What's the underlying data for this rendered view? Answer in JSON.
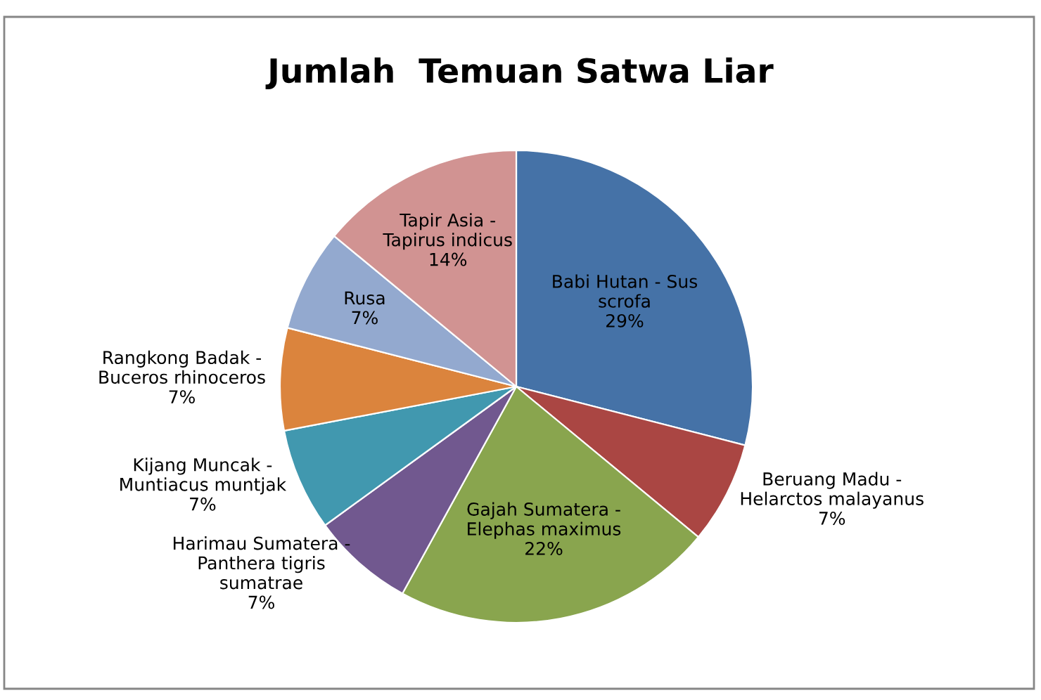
{
  "chart_data": {
    "type": "pie",
    "title": "Jumlah  Temuan Satwa Liar",
    "categories": [
      "Babi Hutan - Sus\nscrofa",
      "Beruang Madu -\nHelarctos malayanus",
      "Gajah Sumatera -\nElephas maximus",
      "Harimau Sumatera -\nPanthera tigris\nsumatrae",
      "Kijang Muncak -\nMuntiacus muntjak",
      "Rangkong Badak -\nBuceros rhinoceros",
      "Rusa",
      "Tapir Asia -\nTapirus indicus"
    ],
    "values": [
      29,
      7,
      22,
      7,
      7,
      7,
      7,
      14
    ],
    "value_labels": [
      "29%",
      "7%",
      "22%",
      "7%",
      "7%",
      "7%",
      "7%",
      "14%"
    ],
    "colors": [
      "#4572a7",
      "#aa4643",
      "#89a54e",
      "#71588f",
      "#4198af",
      "#db843d",
      "#93a9cf",
      "#d19392"
    ],
    "legend": false
  }
}
